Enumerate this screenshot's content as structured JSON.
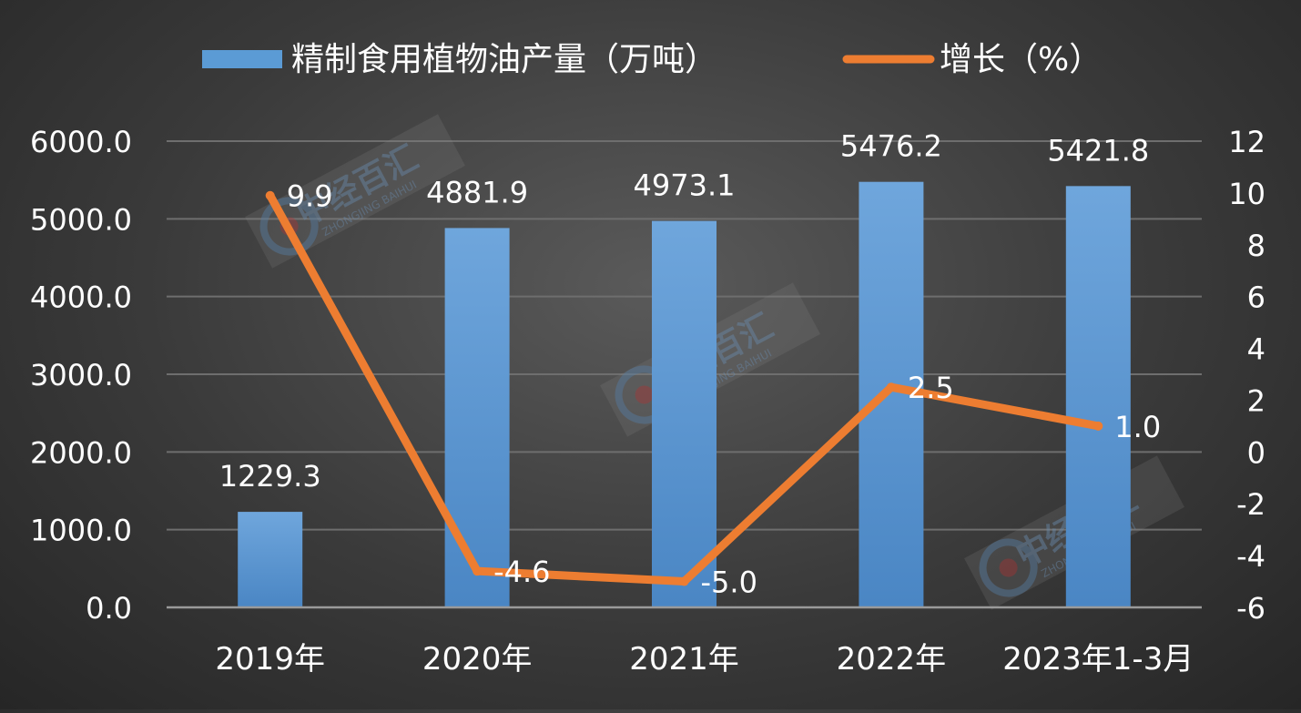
{
  "chart_data": {
    "type": "bar",
    "categories": [
      "2019年",
      "2020年",
      "2021年",
      "2022年",
      "2023年1-3月"
    ],
    "series": [
      {
        "name": "精制食用植物油产量（万吨）",
        "type": "bar",
        "axis": "left",
        "values": [
          1229.3,
          4881.9,
          4973.1,
          5476.2,
          5421.8
        ],
        "labels": [
          "1229.3",
          "4881.9",
          "4973.1",
          "5476.2",
          "5421.8"
        ]
      },
      {
        "name": "增长（%）",
        "type": "line",
        "axis": "right",
        "values": [
          9.9,
          -4.6,
          -5.0,
          2.5,
          1.0
        ],
        "labels": [
          "9.9",
          "-4.6",
          "-5.0",
          "2.5",
          "1.0"
        ]
      }
    ],
    "left_axis": {
      "min": 0,
      "max": 6000,
      "step": 1000,
      "ticks": [
        "0.0",
        "1000.0",
        "2000.0",
        "3000.0",
        "4000.0",
        "5000.0",
        "6000.0"
      ]
    },
    "right_axis": {
      "min": -6,
      "max": 12,
      "step": 2,
      "ticks": [
        "-6",
        "-4",
        "-2",
        "0",
        "2",
        "4",
        "6",
        "8",
        "10",
        "12"
      ]
    },
    "legend_position": "top",
    "grid": true,
    "colors": {
      "bar": "#5b9bd5",
      "line": "#ed7d31",
      "text": "#ffffff",
      "grid": "#6e6e6e"
    },
    "watermark": {
      "text_cn": "中经百汇",
      "text_en": "ZHONGJING BAIHUI"
    }
  }
}
